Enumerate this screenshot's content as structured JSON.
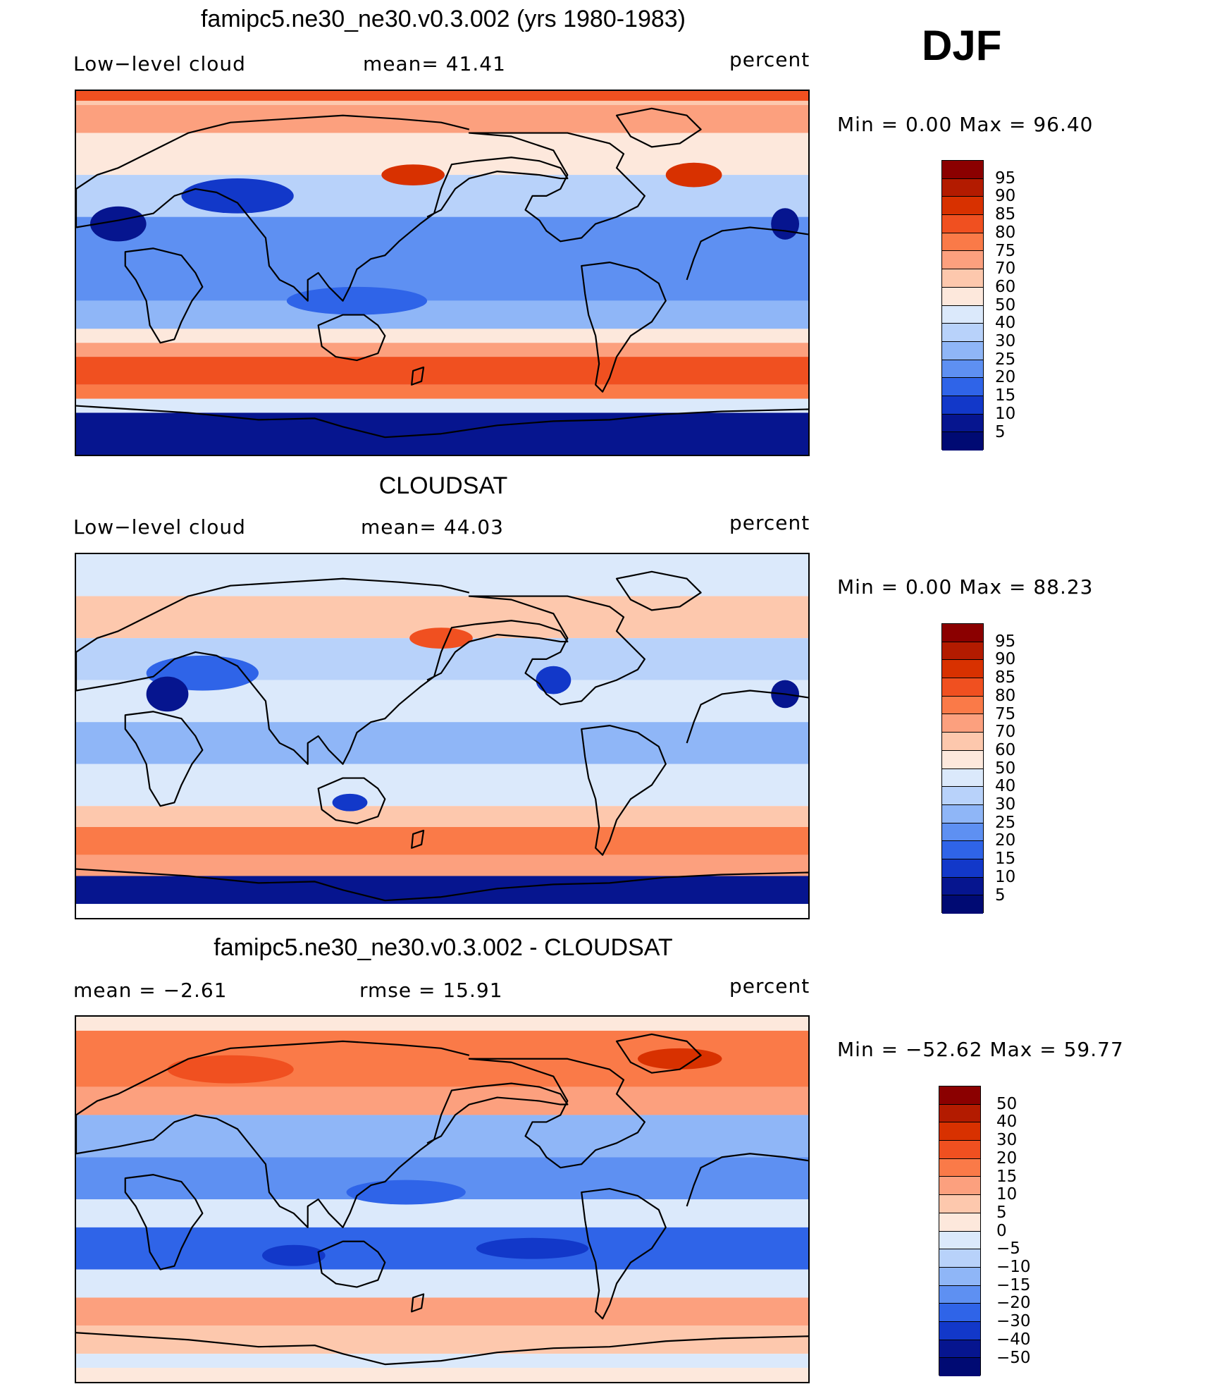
{
  "season": "DJF",
  "panels": [
    {
      "title": "famipc5.ne30_ne30.v0.3.002 (yrs 1980-1983)",
      "left_label": "Low−level cloud",
      "center_label": "mean=   41.41",
      "right_label": "percent",
      "minmax": "Min =     0.00  Max =    96.40",
      "colorbar_levels": [
        "95",
        "90",
        "85",
        "80",
        "75",
        "70",
        "60",
        "50",
        "40",
        "30",
        "25",
        "20",
        "15",
        "10",
        "5"
      ],
      "colorbar_colors": [
        "#8b0000",
        "#b31b00",
        "#d83100",
        "#f05020",
        "#fa7a48",
        "#fca07e",
        "#fdc8ad",
        "#fde8dc",
        "#dbe9fb",
        "#b8d2fa",
        "#8fb6f7",
        "#5e90f2",
        "#2f64e8",
        "#1238c9",
        "#06158f",
        "#000a73"
      ],
      "map_style": "model"
    },
    {
      "title": "CLOUDSAT",
      "left_label": "Low−level cloud",
      "center_label": "mean=   44.03",
      "right_label": "percent",
      "minmax": "Min =     0.00  Max =    88.23",
      "colorbar_levels": [
        "95",
        "90",
        "85",
        "80",
        "75",
        "70",
        "60",
        "50",
        "40",
        "30",
        "25",
        "20",
        "15",
        "10",
        "5"
      ],
      "colorbar_colors": [
        "#8b0000",
        "#b31b00",
        "#d83100",
        "#f05020",
        "#fa7a48",
        "#fca07e",
        "#fdc8ad",
        "#fde8dc",
        "#dbe9fb",
        "#b8d2fa",
        "#8fb6f7",
        "#5e90f2",
        "#2f64e8",
        "#1238c9",
        "#06158f",
        "#000a73"
      ],
      "map_style": "obs"
    },
    {
      "title": "famipc5.ne30_ne30.v0.3.002 - CLOUDSAT",
      "left_label": "mean =    −2.61",
      "center_label": "rmse =    15.91",
      "right_label": "percent",
      "minmax": "Min = −52.62  Max =    59.77",
      "colorbar_levels": [
        "50",
        "40",
        "30",
        "20",
        "15",
        "10",
        "5",
        "0",
        "−5",
        "−10",
        "−15",
        "−20",
        "−30",
        "−40",
        "−50"
      ],
      "colorbar_colors": [
        "#8b0000",
        "#b31b00",
        "#d83100",
        "#f05020",
        "#fa7a48",
        "#fca07e",
        "#fdc8ad",
        "#fde8dc",
        "#dbe9fb",
        "#b8d2fa",
        "#8fb6f7",
        "#5e90f2",
        "#2f64e8",
        "#1238c9",
        "#06158f",
        "#000a73"
      ],
      "map_style": "diff"
    }
  ]
}
